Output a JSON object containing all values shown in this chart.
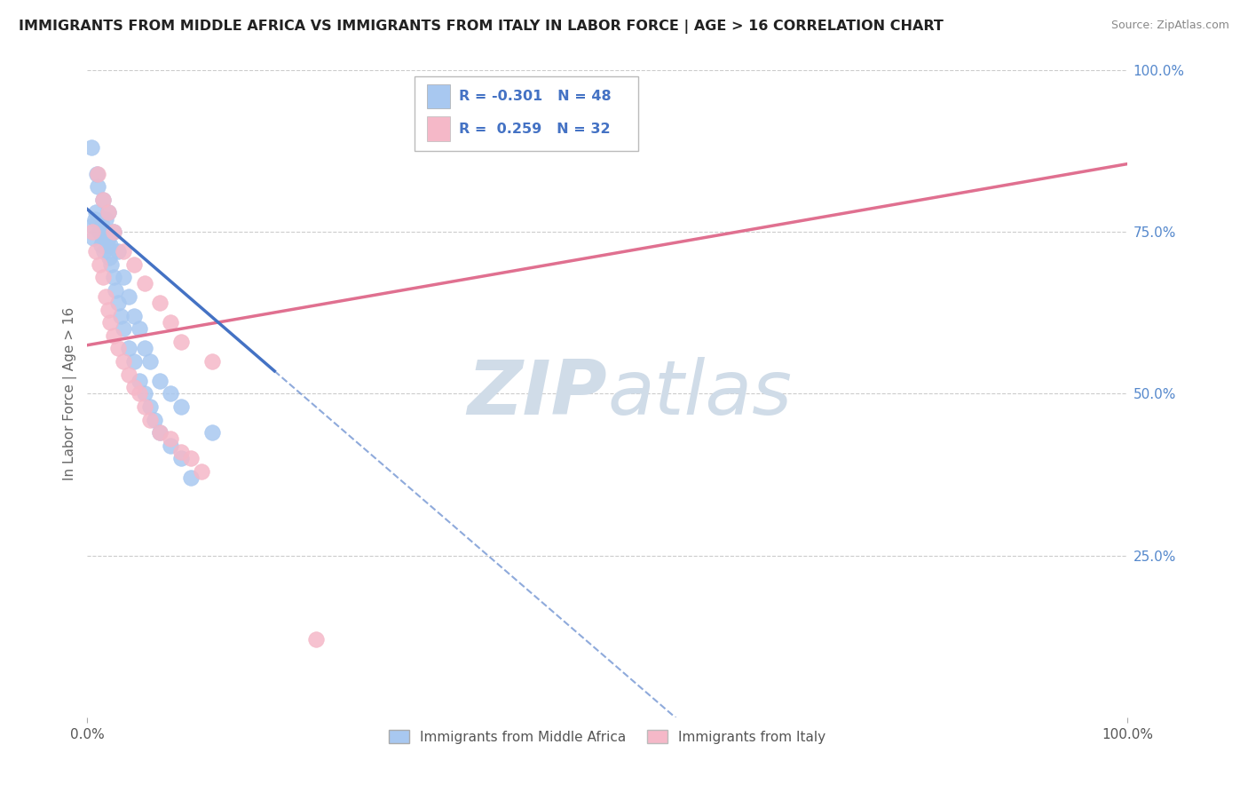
{
  "title": "IMMIGRANTS FROM MIDDLE AFRICA VS IMMIGRANTS FROM ITALY IN LABOR FORCE | AGE > 16 CORRELATION CHART",
  "source": "Source: ZipAtlas.com",
  "ylabel": "In Labor Force | Age > 16",
  "legend_label_1": "Immigrants from Middle Africa",
  "legend_label_2": "Immigrants from Italy",
  "R1": -0.301,
  "N1": 48,
  "R2": 0.259,
  "N2": 32,
  "blue_color": "#A8C8F0",
  "pink_color": "#F5B8C8",
  "blue_line_color": "#4472C4",
  "pink_line_color": "#E07090",
  "blue_scatter": [
    [
      0.5,
      0.76
    ],
    [
      0.6,
      0.74
    ],
    [
      0.7,
      0.77
    ],
    [
      0.8,
      0.78
    ],
    [
      1.0,
      0.82
    ],
    [
      1.2,
      0.75
    ],
    [
      1.3,
      0.73
    ],
    [
      1.4,
      0.76
    ],
    [
      1.5,
      0.74
    ],
    [
      1.6,
      0.72
    ],
    [
      1.7,
      0.75
    ],
    [
      1.8,
      0.77
    ],
    [
      1.9,
      0.73
    ],
    [
      2.0,
      0.74
    ],
    [
      2.1,
      0.71
    ],
    [
      2.2,
      0.73
    ],
    [
      2.3,
      0.7
    ],
    [
      2.5,
      0.68
    ],
    [
      2.7,
      0.66
    ],
    [
      3.0,
      0.64
    ],
    [
      3.2,
      0.62
    ],
    [
      3.5,
      0.6
    ],
    [
      4.0,
      0.57
    ],
    [
      4.5,
      0.55
    ],
    [
      5.0,
      0.52
    ],
    [
      5.5,
      0.5
    ],
    [
      6.0,
      0.48
    ],
    [
      6.5,
      0.46
    ],
    [
      7.0,
      0.44
    ],
    [
      8.0,
      0.42
    ],
    [
      9.0,
      0.4
    ],
    [
      10.0,
      0.37
    ],
    [
      0.4,
      0.88
    ],
    [
      0.9,
      0.84
    ],
    [
      1.5,
      0.8
    ],
    [
      2.0,
      0.78
    ],
    [
      2.5,
      0.75
    ],
    [
      3.0,
      0.72
    ],
    [
      3.5,
      0.68
    ],
    [
      4.0,
      0.65
    ],
    [
      4.5,
      0.62
    ],
    [
      5.0,
      0.6
    ],
    [
      5.5,
      0.57
    ],
    [
      6.0,
      0.55
    ],
    [
      7.0,
      0.52
    ],
    [
      8.0,
      0.5
    ],
    [
      9.0,
      0.48
    ],
    [
      12.0,
      0.44
    ]
  ],
  "pink_scatter": [
    [
      0.5,
      0.75
    ],
    [
      0.8,
      0.72
    ],
    [
      1.2,
      0.7
    ],
    [
      1.5,
      0.68
    ],
    [
      1.8,
      0.65
    ],
    [
      2.0,
      0.63
    ],
    [
      2.2,
      0.61
    ],
    [
      2.5,
      0.59
    ],
    [
      3.0,
      0.57
    ],
    [
      3.5,
      0.55
    ],
    [
      4.0,
      0.53
    ],
    [
      4.5,
      0.51
    ],
    [
      5.0,
      0.5
    ],
    [
      5.5,
      0.48
    ],
    [
      6.0,
      0.46
    ],
    [
      7.0,
      0.44
    ],
    [
      8.0,
      0.43
    ],
    [
      9.0,
      0.41
    ],
    [
      10.0,
      0.4
    ],
    [
      11.0,
      0.38
    ],
    [
      1.0,
      0.84
    ],
    [
      1.5,
      0.8
    ],
    [
      2.0,
      0.78
    ],
    [
      2.5,
      0.75
    ],
    [
      3.5,
      0.72
    ],
    [
      4.5,
      0.7
    ],
    [
      5.5,
      0.67
    ],
    [
      7.0,
      0.64
    ],
    [
      8.0,
      0.61
    ],
    [
      9.0,
      0.58
    ],
    [
      12.0,
      0.55
    ],
    [
      22.0,
      0.12
    ]
  ],
  "blue_line": {
    "x0": 0.0,
    "y0": 0.785,
    "x1": 18.0,
    "y1": 0.535,
    "dash_start": 7.0,
    "dash_end_y": 0.438
  },
  "pink_line": {
    "x0": 0.0,
    "y0": 0.575,
    "x1": 100.0,
    "y1": 0.855
  },
  "xlim": [
    0.0,
    100.0
  ],
  "ylim": [
    0.0,
    1.0
  ],
  "grid_color": "#CCCCCC",
  "background_color": "#FFFFFF",
  "watermark_zip": "ZIP",
  "watermark_atlas": "atlas",
  "watermark_color": "#D0DCE8"
}
